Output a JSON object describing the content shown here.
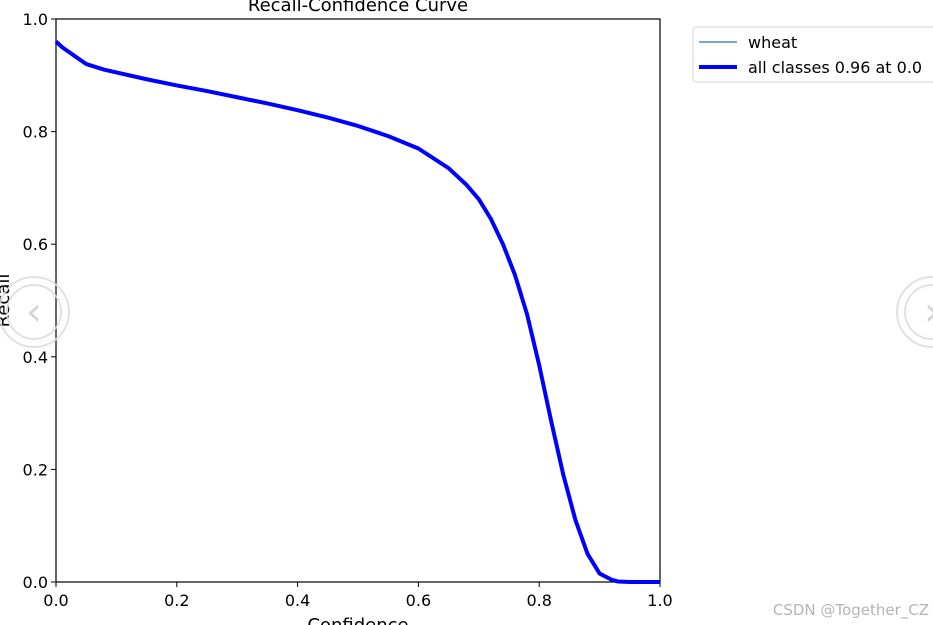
{
  "chart_data": {
    "type": "line",
    "title": "Recall-Confidence Curve",
    "xlabel": "Confidence",
    "ylabel": "Recall",
    "xlim": [
      0.0,
      1.0
    ],
    "ylim": [
      0.0,
      1.0
    ],
    "xticks": [
      "0.0",
      "0.2",
      "0.4",
      "0.6",
      "0.8",
      "1.0"
    ],
    "yticks": [
      "0.0",
      "0.2",
      "0.4",
      "0.6",
      "0.8",
      "1.0"
    ],
    "grid": false,
    "legend_position": "outside-top-right",
    "series": [
      {
        "name": "wheat",
        "color": "#1f77b4",
        "linewidth": "thin",
        "x": [
          0.0,
          0.01,
          0.03,
          0.05,
          0.08,
          0.1,
          0.15,
          0.2,
          0.25,
          0.3,
          0.35,
          0.4,
          0.45,
          0.5,
          0.55,
          0.6,
          0.65,
          0.68,
          0.7,
          0.72,
          0.74,
          0.76,
          0.78,
          0.8,
          0.82,
          0.84,
          0.86,
          0.88,
          0.9,
          0.92,
          0.93,
          0.95,
          0.97,
          1.0
        ],
        "y": [
          0.96,
          0.95,
          0.935,
          0.92,
          0.91,
          0.905,
          0.893,
          0.882,
          0.872,
          0.861,
          0.85,
          0.838,
          0.825,
          0.81,
          0.792,
          0.77,
          0.735,
          0.705,
          0.68,
          0.645,
          0.6,
          0.545,
          0.475,
          0.385,
          0.285,
          0.19,
          0.11,
          0.05,
          0.015,
          0.004,
          0.001,
          0.0,
          0.0,
          0.0
        ]
      },
      {
        "name": "all classes 0.96 at 0.000",
        "color": "#0000ff",
        "linewidth": "thick",
        "x": [
          0.0,
          0.01,
          0.03,
          0.05,
          0.08,
          0.1,
          0.15,
          0.2,
          0.25,
          0.3,
          0.35,
          0.4,
          0.45,
          0.5,
          0.55,
          0.6,
          0.65,
          0.68,
          0.7,
          0.72,
          0.74,
          0.76,
          0.78,
          0.8,
          0.82,
          0.84,
          0.86,
          0.88,
          0.9,
          0.92,
          0.93,
          0.95,
          0.97,
          1.0
        ],
        "y": [
          0.96,
          0.95,
          0.935,
          0.92,
          0.91,
          0.905,
          0.893,
          0.882,
          0.872,
          0.861,
          0.85,
          0.838,
          0.825,
          0.81,
          0.792,
          0.77,
          0.735,
          0.705,
          0.68,
          0.645,
          0.6,
          0.545,
          0.475,
          0.385,
          0.285,
          0.19,
          0.11,
          0.05,
          0.015,
          0.004,
          0.001,
          0.0,
          0.0,
          0.0
        ]
      }
    ]
  },
  "legend": {
    "entry_1": "wheat",
    "entry_2": "all classes 0.96 at 0.0"
  },
  "watermark": "CSDN @Together_CZ",
  "nav": {
    "prev_icon": "chevron-left-icon",
    "next_icon": "chevron-right-icon"
  }
}
